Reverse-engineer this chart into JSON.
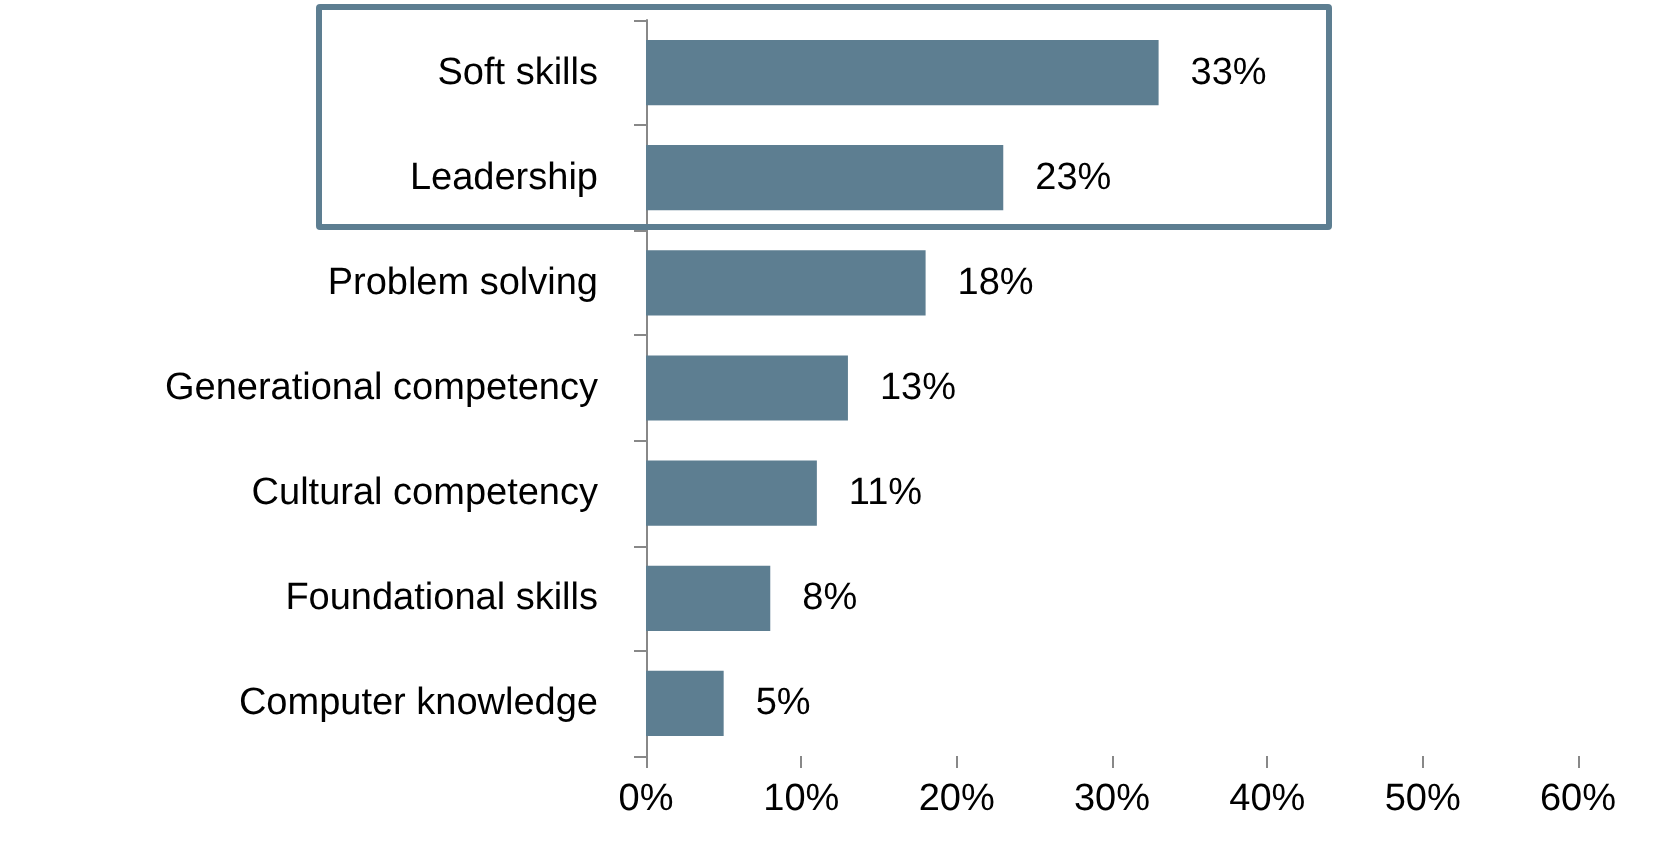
{
  "chart_data": {
    "type": "bar",
    "orientation": "horizontal",
    "categories": [
      "Soft skills",
      "Leadership",
      "Problem solving",
      "Generational competency",
      "Cultural competency",
      "Foundational skills",
      "Computer knowledge"
    ],
    "values": [
      33,
      23,
      18,
      13,
      11,
      8,
      5
    ],
    "value_labels": [
      "33%",
      "23%",
      "18%",
      "13%",
      "11%",
      "8%",
      "5%"
    ],
    "color": "#5d7e91",
    "xlim": [
      0,
      60
    ],
    "xticks": [
      {
        "value": 0,
        "label": "0%"
      },
      {
        "value": 10,
        "label": "10%"
      },
      {
        "value": 20,
        "label": "20%"
      },
      {
        "value": 30,
        "label": "30%"
      },
      {
        "value": 40,
        "label": "40%"
      },
      {
        "value": 50,
        "label": "50%"
      },
      {
        "value": 60,
        "label": "60%"
      }
    ],
    "grid": false
  }
}
